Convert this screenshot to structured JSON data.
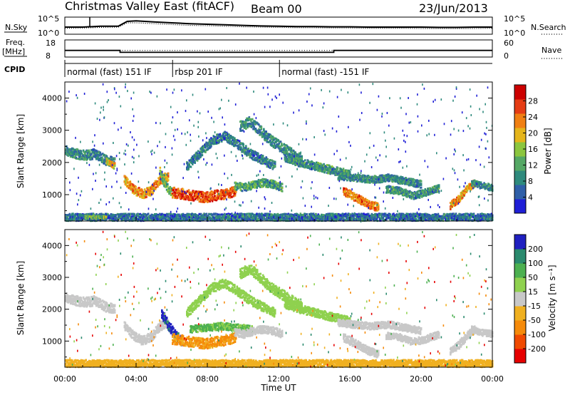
{
  "header": {
    "title": "Christmas Valley East (fitACF)",
    "beam": "Beam 00",
    "date": "23/Jun/2013"
  },
  "chart_data": [
    {
      "type": "line",
      "panel": "noise",
      "left_label": "N.Sky",
      "right_label": "N.Search",
      "left_ticks": [
        "10^5",
        "10^0"
      ],
      "right_ticks": [
        "10^5",
        "10^0"
      ],
      "series": [
        {
          "name": "N.Sky",
          "style": "solid",
          "x": [
            0,
            1,
            2,
            3,
            3.5,
            4,
            5,
            6,
            7,
            8,
            9,
            10,
            11,
            12,
            13,
            14,
            15,
            16,
            17,
            18,
            19,
            20,
            21,
            22,
            23,
            24
          ],
          "y": [
            2,
            2,
            2.3,
            2.3,
            4,
            4.2,
            3.8,
            3.5,
            3.2,
            3,
            2.8,
            2.6,
            2.4,
            2.3,
            2.2,
            2.2,
            2.1,
            2.1,
            2,
            2,
            2,
            2,
            1.9,
            1.9,
            2,
            2
          ]
        },
        {
          "name": "N.Search",
          "style": "dotted",
          "x": [
            0,
            1,
            2,
            3,
            3.5,
            4,
            5,
            6,
            7,
            8,
            9,
            10,
            11,
            12,
            13,
            14,
            15,
            16,
            17,
            18,
            19,
            20,
            21,
            22,
            23,
            24
          ],
          "y": [
            1.6,
            1.7,
            1.9,
            2,
            3.5,
            3.5,
            3.2,
            2.9,
            2.6,
            2.5,
            2.3,
            2.1,
            2,
            1.9,
            1.8,
            1.8,
            1.7,
            1.7,
            1.6,
            1.6,
            1.6,
            1.5,
            1.5,
            1.5,
            1.5,
            1.6
          ]
        }
      ]
    },
    {
      "type": "line",
      "panel": "frequency",
      "left_label": "Freq.",
      "left_unit": "[MHz]",
      "right_label": "Nave",
      "left_ticks": [
        "18",
        "8"
      ],
      "right_ticks": [
        "60",
        "0"
      ],
      "series": [
        {
          "name": "Freq.",
          "style": "solid",
          "x": [
            0,
            3.1,
            3.1,
            15.1,
            15.1,
            24
          ],
          "y": [
            11.5,
            11.5,
            10,
            10,
            11.5,
            11.5
          ]
        },
        {
          "name": "Nave",
          "style": "dotted",
          "x": [
            0,
            24
          ],
          "y": [
            21,
            21
          ]
        }
      ]
    },
    {
      "type": "table",
      "panel": "cpid",
      "label": "CPID",
      "segments": [
        {
          "start": 0,
          "end": 6.05,
          "text": "normal (fast) 151 IF"
        },
        {
          "start": 6.05,
          "end": 12.05,
          "text": "rbsp 201 IF"
        },
        {
          "start": 12.05,
          "end": 24,
          "text": "normal (fast) -151 IF"
        }
      ]
    },
    {
      "type": "heatmap",
      "panel": "power",
      "ylabel": "Slant Range [km]",
      "yticks": [
        1000,
        2000,
        3000,
        4000
      ],
      "ylim": [
        180,
        4500
      ],
      "xlim": [
        0,
        24
      ],
      "colorbar_label": "Power [dB]",
      "colorbar_ticks": [
        4,
        8,
        12,
        16,
        20,
        24,
        28
      ],
      "colorbar_range": [
        0,
        32
      ],
      "colors": [
        "#1f1fd6",
        "#2f5fa8",
        "#2e8a7d",
        "#55a865",
        "#8cc63f",
        "#e5b51b",
        "#f07f12",
        "#e53c14",
        "#cc0000"
      ],
      "scatter_blobs": [
        {
          "t0": 0.0,
          "t1": 2.8,
          "r": [
            2400,
            2300,
            2250,
            2300,
            2100,
            2050
          ],
          "width": 300,
          "level": 9
        },
        {
          "t0": 2.3,
          "t1": 2.8,
          "r": [
            2050,
            1900
          ],
          "width": 200,
          "level": 20
        },
        {
          "t0": 3.3,
          "t1": 5.8,
          "r": [
            1500,
            1200,
            1050,
            1150,
            1500,
            1600
          ],
          "width": 280,
          "level": 22
        },
        {
          "t0": 5.3,
          "t1": 6.0,
          "r": [
            1750,
            1400,
            1200,
            1100
          ],
          "width": 250,
          "level": 14
        },
        {
          "t0": 6.0,
          "t1": 9.6,
          "r": [
            1100,
            1050,
            1000,
            950,
            1000,
            1050,
            1150
          ],
          "width": 320,
          "level": 26
        },
        {
          "t0": 9.5,
          "t1": 12.2,
          "r": [
            1300,
            1250,
            1350,
            1400,
            1350,
            1250
          ],
          "width": 240,
          "level": 11
        },
        {
          "t0": 6.8,
          "t1": 11.8,
          "r": [
            1900,
            2300,
            2700,
            2850,
            2600,
            2300,
            2100,
            1900
          ],
          "width": 280,
          "level": 8
        },
        {
          "t0": 9.8,
          "t1": 13.3,
          "r": [
            3150,
            3300,
            3000,
            2700,
            2500,
            2300,
            2100
          ],
          "width": 320,
          "level": 9
        },
        {
          "t0": 12.3,
          "t1": 16.0,
          "r": [
            2200,
            2050,
            1950,
            1850,
            1750,
            1650
          ],
          "width": 260,
          "level": 10
        },
        {
          "t0": 15.3,
          "t1": 20.0,
          "r": [
            1600,
            1550,
            1500,
            1550,
            1450,
            1350
          ],
          "width": 220,
          "level": 9
        },
        {
          "t0": 15.6,
          "t1": 17.6,
          "r": [
            1150,
            950,
            750,
            620
          ],
          "width": 250,
          "level": 24
        },
        {
          "t0": 18.0,
          "t1": 21.0,
          "r": [
            1200,
            1150,
            1000,
            1100,
            1250
          ],
          "width": 220,
          "level": 10
        },
        {
          "t0": 21.6,
          "t1": 23.0,
          "r": [
            700,
            900,
            1200,
            1400
          ],
          "width": 240,
          "level": 22
        },
        {
          "t0": 22.8,
          "t1": 24.0,
          "r": [
            1400,
            1300,
            1250
          ],
          "width": 200,
          "level": 9
        },
        {
          "t0": 0.0,
          "t1": 24.0,
          "r": [
            330,
            330,
            330
          ],
          "width": 220,
          "level": 7
        },
        {
          "t0": 1.1,
          "t1": 2.3,
          "r": [
            330,
            330
          ],
          "width": 80,
          "level": 15
        }
      ],
      "noise_levels": [
        3,
        8
      ],
      "noise_range": [
        200,
        4500
      ],
      "noise_count": 520
    },
    {
      "type": "heatmap",
      "panel": "velocity",
      "ylabel": "Slant Range [km]",
      "yticks": [
        1000,
        2000,
        3000,
        4000
      ],
      "ylim": [
        180,
        4500
      ],
      "xlim": [
        0,
        24
      ],
      "xlabel": "Time UT",
      "xticks": [
        "00:00",
        "04:00",
        "08:00",
        "12:00",
        "16:00",
        "20:00",
        "00:00"
      ],
      "colorbar_label": "Velocity [m s⁻¹]",
      "colorbar_ticks": [
        200,
        100,
        50,
        15,
        -15,
        -50,
        -100,
        -200
      ],
      "colorbar_range": [
        -250,
        250
      ],
      "colors": [
        "#e60000",
        "#f04a00",
        "#f58a0a",
        "#f0b020",
        "#c8c8c8",
        "#8fd14f",
        "#4cb050",
        "#2a8a6e",
        "#2020c0"
      ],
      "scatter_blobs": [
        {
          "t0": 0.0,
          "t1": 2.8,
          "r": [
            2400,
            2300,
            2250,
            2300,
            2100,
            2050
          ],
          "width": 300,
          "level": 0
        },
        {
          "t0": 3.3,
          "t1": 5.8,
          "r": [
            1500,
            1200,
            1050,
            1150,
            1500,
            1600
          ],
          "width": 280,
          "level": -5
        },
        {
          "t0": 5.4,
          "t1": 6.6,
          "r": [
            1900,
            1500,
            1200,
            1000
          ],
          "width": 300,
          "level": 220
        },
        {
          "t0": 6.0,
          "t1": 9.6,
          "r": [
            1100,
            1050,
            1000,
            950,
            1000,
            1050,
            1150
          ],
          "width": 320,
          "level": -60
        },
        {
          "t0": 7.0,
          "t1": 10.5,
          "r": [
            1400,
            1450,
            1500,
            1450,
            1400
          ],
          "width": 220,
          "level": 60
        },
        {
          "t0": 9.5,
          "t1": 12.2,
          "r": [
            1300,
            1250,
            1350,
            1400,
            1350,
            1250
          ],
          "width": 240,
          "level": 0
        },
        {
          "t0": 6.8,
          "t1": 11.8,
          "r": [
            1900,
            2300,
            2700,
            2850,
            2600,
            2300,
            2100,
            1900
          ],
          "width": 280,
          "level": 40
        },
        {
          "t0": 9.8,
          "t1": 13.3,
          "r": [
            3150,
            3300,
            3000,
            2700,
            2500,
            2300,
            2100
          ],
          "width": 320,
          "level": 30
        },
        {
          "t0": 12.3,
          "t1": 16.0,
          "r": [
            2200,
            2050,
            1950,
            1850,
            1750,
            1650
          ],
          "width": 260,
          "level": 20
        },
        {
          "t0": 15.3,
          "t1": 20.0,
          "r": [
            1600,
            1550,
            1500,
            1550,
            1450,
            1350
          ],
          "width": 220,
          "level": 0
        },
        {
          "t0": 15.6,
          "t1": 17.6,
          "r": [
            1150,
            950,
            750,
            620
          ],
          "width": 250,
          "level": 0
        },
        {
          "t0": 18.0,
          "t1": 21.0,
          "r": [
            1200,
            1150,
            1000,
            1100,
            1250
          ],
          "width": 220,
          "level": 0
        },
        {
          "t0": 21.6,
          "t1": 23.0,
          "r": [
            700,
            900,
            1200,
            1400
          ],
          "width": 240,
          "level": 0
        },
        {
          "t0": 22.8,
          "t1": 24.0,
          "r": [
            1400,
            1300,
            1250
          ],
          "width": 200,
          "level": 0
        },
        {
          "t0": 0.0,
          "t1": 24.0,
          "r": [
            330,
            330,
            330
          ],
          "width": 220,
          "level": -40
        }
      ],
      "noise_levels": [
        -200,
        -80,
        -40,
        40,
        80,
        200
      ],
      "noise_range": [
        200,
        4500
      ],
      "noise_count": 420
    }
  ]
}
